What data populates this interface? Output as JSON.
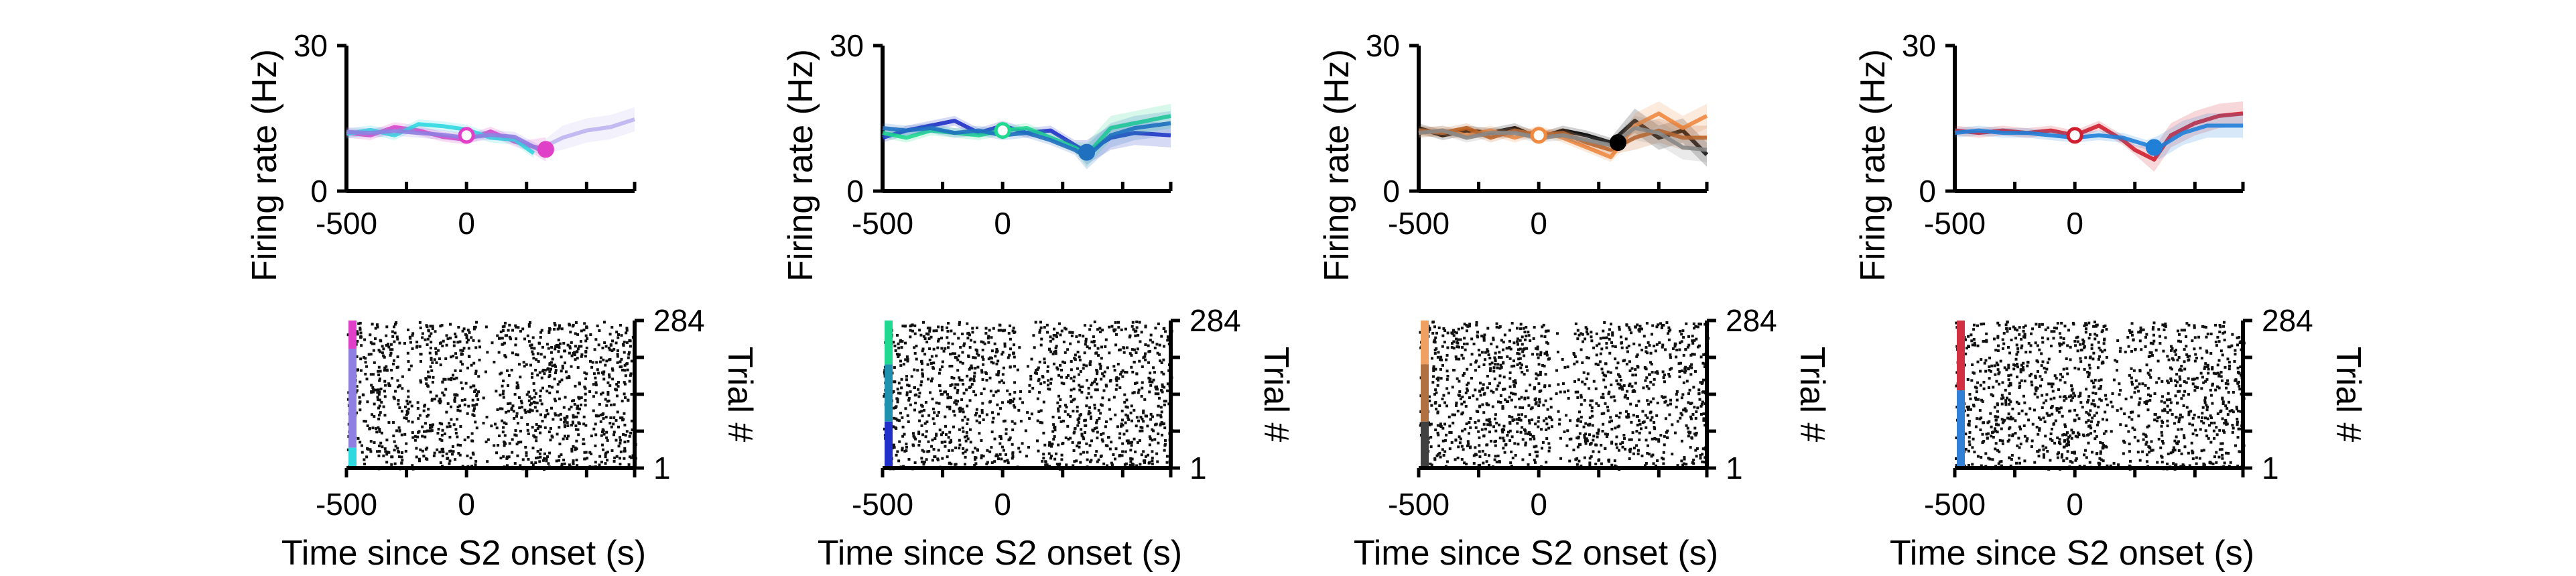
{
  "figure": {
    "rate_ylabel": "Firing rate (Hz)",
    "raster_ylabel": "Trial #",
    "xlabel": "Time since S2 onset (s)"
  },
  "chart_data": [
    {
      "type": "line",
      "panel": "firing-rate-1",
      "xlabel": "",
      "ylabel": "Firing rate (Hz)",
      "xlim": [
        -500,
        700
      ],
      "ylim": [
        0,
        30
      ],
      "xticks": [
        -500,
        -250,
        0,
        250,
        500,
        700
      ],
      "xtick_labels": [
        "-500",
        "",
        "0",
        "",
        "",
        ""
      ],
      "yticks": [
        0,
        30
      ],
      "ytick_labels": [
        "0",
        "30"
      ],
      "series": [
        {
          "color": "#e040c8",
          "x": [
            -500,
            -400,
            -300,
            -200,
            -100,
            0,
            100,
            200,
            250,
            330
          ],
          "y": [
            12,
            11.5,
            13.2,
            12.5,
            11.2,
            10.6,
            12.3,
            10.2,
            9.5,
            8.6
          ]
        },
        {
          "color": "#30d8e0",
          "x": [
            -500,
            -400,
            -300,
            -200,
            -100,
            0,
            100,
            200,
            280
          ],
          "y": [
            11.8,
            12.6,
            11.5,
            13.8,
            13.4,
            12.7,
            11.0,
            10.6,
            7.8
          ]
        },
        {
          "color": "#8f7fe0",
          "x": [
            -500,
            -400,
            -300,
            -200,
            -100,
            0,
            100,
            200,
            300
          ],
          "y": [
            12.2,
            12.0,
            12.4,
            12.0,
            11.6,
            11.0,
            11.6,
            11.2,
            8.6
          ]
        },
        {
          "color": "#bcb4f0",
          "x": [
            300,
            400,
            500,
            600,
            700
          ],
          "y": [
            8.6,
            11.0,
            12.5,
            13.2,
            14.8
          ]
        }
      ],
      "markers": [
        {
          "x": 0,
          "y": 11.5,
          "color": "#e040c8"
        },
        {
          "x": 330,
          "y": 8.6,
          "color": "#e040c8"
        }
      ]
    },
    {
      "type": "scatter",
      "panel": "raster-1",
      "xlabel": "Time since S2 onset (s)",
      "ylabel": "Trial #",
      "xlim": [
        -500,
        700
      ],
      "ylim": [
        1,
        284
      ],
      "xticks": [
        -500,
        -250,
        0,
        250,
        500,
        700
      ],
      "xtick_labels": [
        "-500",
        "",
        "0",
        "",
        "",
        ""
      ],
      "yticks": [
        1,
        284
      ],
      "ytick_labels": [
        "1",
        "284"
      ],
      "color_bar": [
        {
          "color": "#e040c8",
          "from": 230,
          "to": 284
        },
        {
          "color": "#8f7fe0",
          "from": 40,
          "to": 230
        },
        {
          "color": "#30d8e0",
          "from": 1,
          "to": 40
        }
      ],
      "gap": [
        50,
        120
      ]
    },
    {
      "type": "line",
      "panel": "firing-rate-2",
      "xlabel": "",
      "ylabel": "Firing rate (Hz)",
      "xlim": [
        -500,
        700
      ],
      "ylim": [
        0,
        30
      ],
      "xticks": [
        -500,
        -250,
        0,
        250,
        500,
        700
      ],
      "xtick_labels": [
        "-500",
        "",
        "0",
        "",
        "",
        ""
      ],
      "yticks": [
        0,
        30
      ],
      "ytick_labels": [
        "0",
        "30"
      ],
      "series": [
        {
          "color": "#2030c8",
          "x": [
            -500,
            -400,
            -300,
            -200,
            -100,
            0,
            100,
            200,
            300,
            350,
            450,
            550,
            700
          ],
          "y": [
            11,
            12.5,
            13.5,
            14.5,
            12.0,
            13.5,
            12.0,
            12.5,
            9.5,
            8.0,
            11.0,
            12.0,
            11.5
          ]
        },
        {
          "color": "#20d890",
          "x": [
            -500,
            -400,
            -300,
            -200,
            -100,
            0,
            100,
            200,
            300,
            350,
            450,
            550,
            700
          ],
          "y": [
            12,
            11.0,
            12.5,
            12.0,
            11.5,
            12.5,
            13.0,
            11.0,
            9.0,
            7.5,
            13.0,
            14.0,
            15.5
          ]
        },
        {
          "color": "#2070c0",
          "x": [
            -500,
            -400,
            -300,
            -200,
            -100,
            0,
            100,
            200,
            300,
            350,
            450,
            550,
            700
          ],
          "y": [
            13,
            12.5,
            13.0,
            12.0,
            12.5,
            11.5,
            12.0,
            10.5,
            8.5,
            7.0,
            11.5,
            13.0,
            14.0
          ]
        }
      ],
      "markers": [
        {
          "x": 0,
          "y": 12.5,
          "color": "#20d890"
        },
        {
          "x": 350,
          "y": 8.0,
          "color": "#2070c0"
        }
      ]
    },
    {
      "type": "scatter",
      "panel": "raster-2",
      "xlabel": "Time since S2 onset (s)",
      "ylabel": "Trial #",
      "xlim": [
        -500,
        700
      ],
      "ylim": [
        1,
        284
      ],
      "xticks": [
        -500,
        -250,
        0,
        250,
        500,
        700
      ],
      "xtick_labels": [
        "-500",
        "",
        "0",
        "",
        "",
        ""
      ],
      "yticks": [
        1,
        284
      ],
      "ytick_labels": [
        "1",
        "284"
      ],
      "color_bar": [
        {
          "color": "#20d890",
          "from": 200,
          "to": 284
        },
        {
          "color": "#2090b0",
          "from": 90,
          "to": 200
        },
        {
          "color": "#2030c8",
          "from": 1,
          "to": 90
        }
      ],
      "gap": [
        50,
        130
      ]
    },
    {
      "type": "line",
      "panel": "firing-rate-3",
      "xlabel": "",
      "ylabel": "Firing rate (Hz)",
      "xlim": [
        -500,
        700
      ],
      "ylim": [
        0,
        30
      ],
      "xticks": [
        -500,
        -250,
        0,
        250,
        500,
        700
      ],
      "xtick_labels": [
        "-500",
        "",
        "0",
        "",
        "",
        ""
      ],
      "yticks": [
        0,
        30
      ],
      "ytick_labels": [
        "0",
        "30"
      ],
      "series": [
        {
          "color": "#000000",
          "x": [
            -500,
            -400,
            -300,
            -200,
            -100,
            0,
            100,
            200,
            300,
            400,
            500,
            600,
            700
          ],
          "y": [
            13,
            11.5,
            12.5,
            12.0,
            13.0,
            11.0,
            12.5,
            11.5,
            10.0,
            14.5,
            11.0,
            12.5,
            7.5
          ]
        },
        {
          "color": "#f08a40",
          "x": [
            -500,
            -400,
            -300,
            -200,
            -100,
            0,
            100,
            200,
            300,
            400,
            500,
            600,
            700
          ],
          "y": [
            12,
            12.5,
            11.5,
            12.5,
            11.0,
            12.5,
            11.0,
            9.0,
            7.0,
            13.5,
            16.0,
            13.0,
            15.5
          ]
        },
        {
          "color": "#c06020",
          "x": [
            -500,
            -400,
            -300,
            -200,
            -100,
            0,
            100,
            200,
            300,
            400,
            500,
            600,
            700
          ],
          "y": [
            12.5,
            12.0,
            13.0,
            11.0,
            12.5,
            11.5,
            12.0,
            10.0,
            8.5,
            11.0,
            12.5,
            11.0,
            11.0
          ]
        },
        {
          "color": "#888888",
          "x": [
            -500,
            -400,
            -300,
            -200,
            -100,
            0,
            100,
            200,
            300,
            400,
            500,
            600,
            700
          ],
          "y": [
            12,
            12.5,
            11.0,
            12.0,
            12.0,
            11.0,
            11.5,
            10.5,
            9.5,
            13.0,
            12.0,
            9.0,
            8.5
          ]
        }
      ],
      "markers": [
        {
          "x": 0,
          "y": 11.5,
          "color": "#f08a40"
        },
        {
          "x": 330,
          "y": 10.0,
          "color": "#000000"
        }
      ]
    },
    {
      "type": "scatter",
      "panel": "raster-3",
      "xlabel": "Time since S2 onset (s)",
      "ylabel": "Trial #",
      "xlim": [
        -500,
        700
      ],
      "ylim": [
        1,
        284
      ],
      "xticks": [
        -500,
        -250,
        0,
        250,
        500,
        700
      ],
      "xtick_labels": [
        "-500",
        "",
        "0",
        "",
        "",
        ""
      ],
      "yticks": [
        1,
        284
      ],
      "ytick_labels": [
        "1",
        "284"
      ],
      "color_bar": [
        {
          "color": "#f0a060",
          "from": 200,
          "to": 284
        },
        {
          "color": "#b07040",
          "from": 90,
          "to": 200
        },
        {
          "color": "#404040",
          "from": 1,
          "to": 90
        }
      ],
      "gap": [
        40,
        140
      ]
    },
    {
      "type": "line",
      "panel": "firing-rate-4",
      "xlabel": "",
      "ylabel": "Firing rate (Hz)",
      "xlim": [
        -500,
        700
      ],
      "ylim": [
        0,
        30
      ],
      "xticks": [
        -500,
        -250,
        0,
        250,
        500,
        700
      ],
      "xtick_labels": [
        "-500",
        "",
        "0",
        "",
        "",
        ""
      ],
      "yticks": [
        0,
        30
      ],
      "ytick_labels": [
        "0",
        "30"
      ],
      "series": [
        {
          "color": "#d02030",
          "x": [
            -500,
            -400,
            -300,
            -200,
            -100,
            0,
            100,
            200,
            250,
            330,
            400,
            500,
            600,
            700
          ],
          "y": [
            12.5,
            12.0,
            12.5,
            12.0,
            12.5,
            11.5,
            13.5,
            10.5,
            8.5,
            6.5,
            11.5,
            14.0,
            15.5,
            16.0
          ]
        },
        {
          "color": "#2080d8",
          "x": [
            -500,
            -400,
            -300,
            -200,
            -100,
            0,
            100,
            200,
            300,
            350,
            450,
            550,
            700
          ],
          "y": [
            12.0,
            12.5,
            12.0,
            12.0,
            11.5,
            11.0,
            11.5,
            11.0,
            9.5,
            9.0,
            12.0,
            13.5,
            13.5
          ]
        }
      ],
      "markers": [
        {
          "x": 0,
          "y": 11.5,
          "color": "#d02030"
        },
        {
          "x": 330,
          "y": 9.0,
          "color": "#2080d8"
        }
      ]
    },
    {
      "type": "scatter",
      "panel": "raster-4",
      "xlabel": "Time since S2 onset (s)",
      "ylabel": "Trial #",
      "xlim": [
        -500,
        700
      ],
      "ylim": [
        1,
        284
      ],
      "xticks": [
        -500,
        -250,
        0,
        250,
        500,
        700
      ],
      "xtick_labels": [
        "-500",
        "",
        "0",
        "",
        "",
        ""
      ],
      "yticks": [
        1,
        284
      ],
      "ytick_labels": [
        "1",
        "284"
      ],
      "color_bar": [
        {
          "color": "#d03040",
          "from": 150,
          "to": 284
        },
        {
          "color": "#3080d8",
          "from": 1,
          "to": 150
        }
      ],
      "gap": [
        130,
        220
      ]
    }
  ]
}
